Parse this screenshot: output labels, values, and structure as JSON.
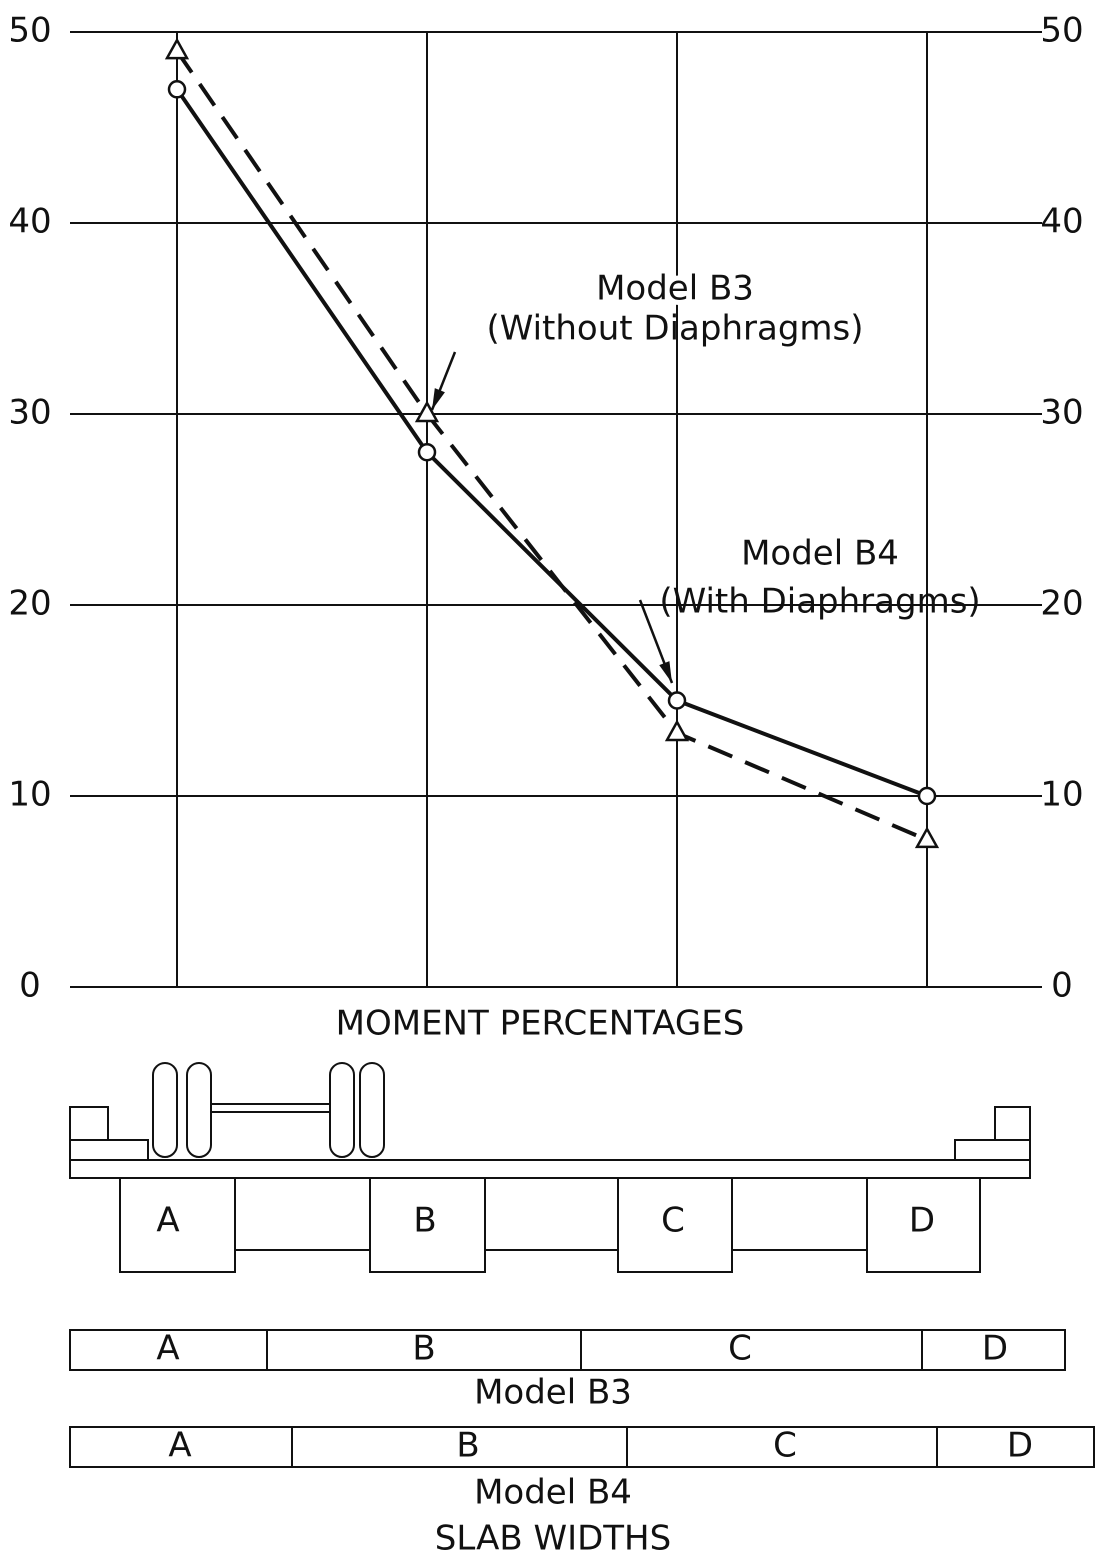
{
  "chart_data": {
    "type": "line",
    "x_label": "MOMENT PERCENTAGES",
    "categories": [
      null,
      null,
      null,
      null
    ],
    "series": [
      {
        "name": "Model B3",
        "note": "(Without Diaphragms)",
        "color": "#111111",
        "line_style": "dashed",
        "marker": "triangle",
        "values": [
          49,
          30,
          13.3,
          7.7
        ]
      },
      {
        "name": "Model B4",
        "note": "(With Diaphragms)",
        "color": "#111111",
        "line_style": "solid",
        "marker": "circle",
        "values": [
          47,
          28,
          15,
          10
        ]
      }
    ],
    "ylim": [
      0,
      50
    ],
    "yticks": [
      0,
      10,
      20,
      30,
      40,
      50
    ],
    "y2lim": [
      0,
      50
    ],
    "y2ticks": [
      0,
      10,
      20,
      30,
      40,
      50
    ],
    "grid": true
  },
  "diagram": {
    "girders": [
      "A",
      "B",
      "C",
      "D"
    ],
    "slab_widths": {
      "title": "SLAB WIDTHS",
      "b3": {
        "label": "Model B3",
        "segments": [
          "A",
          "B",
          "C",
          "D"
        ]
      },
      "b4": {
        "label": "Model B4",
        "segments": [
          "A",
          "B",
          "C",
          "D"
        ]
      }
    }
  }
}
